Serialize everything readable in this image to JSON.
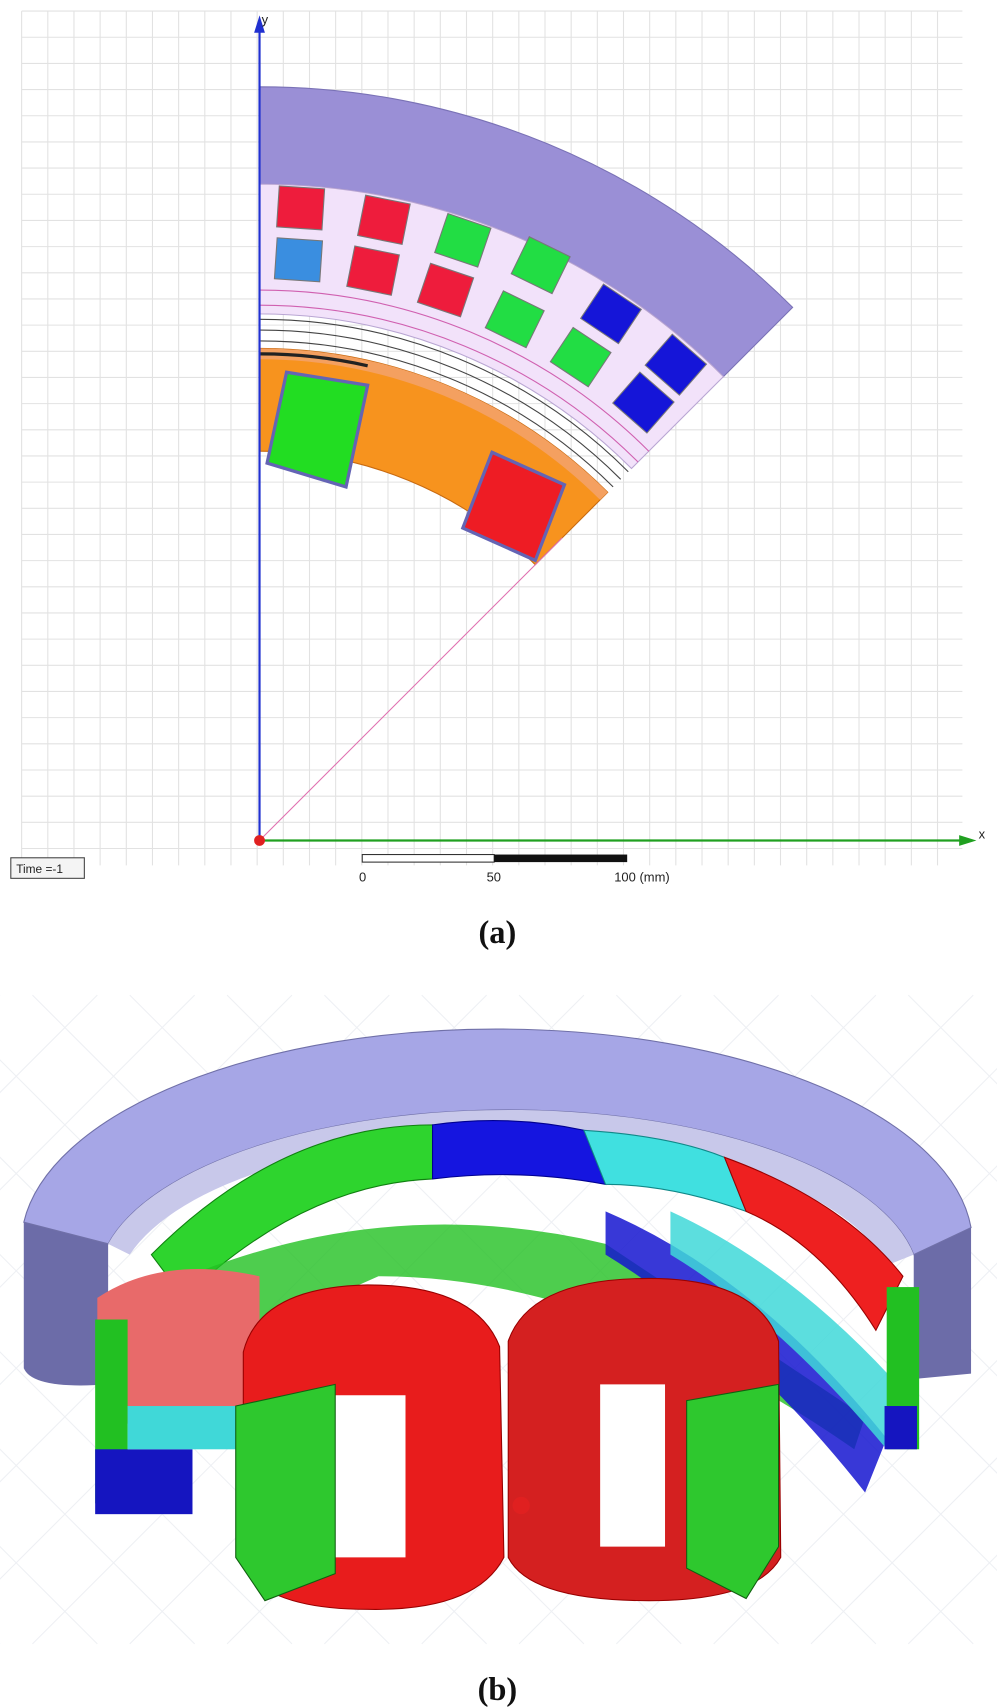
{
  "panel_a": {
    "axis_y": "y",
    "axis_x": "x",
    "time_label": "Time =-1",
    "scale_labels": [
      "0",
      "50",
      "100 (mm)"
    ],
    "caption": "(a)"
  },
  "panel_b": {
    "caption": "(b)"
  }
}
